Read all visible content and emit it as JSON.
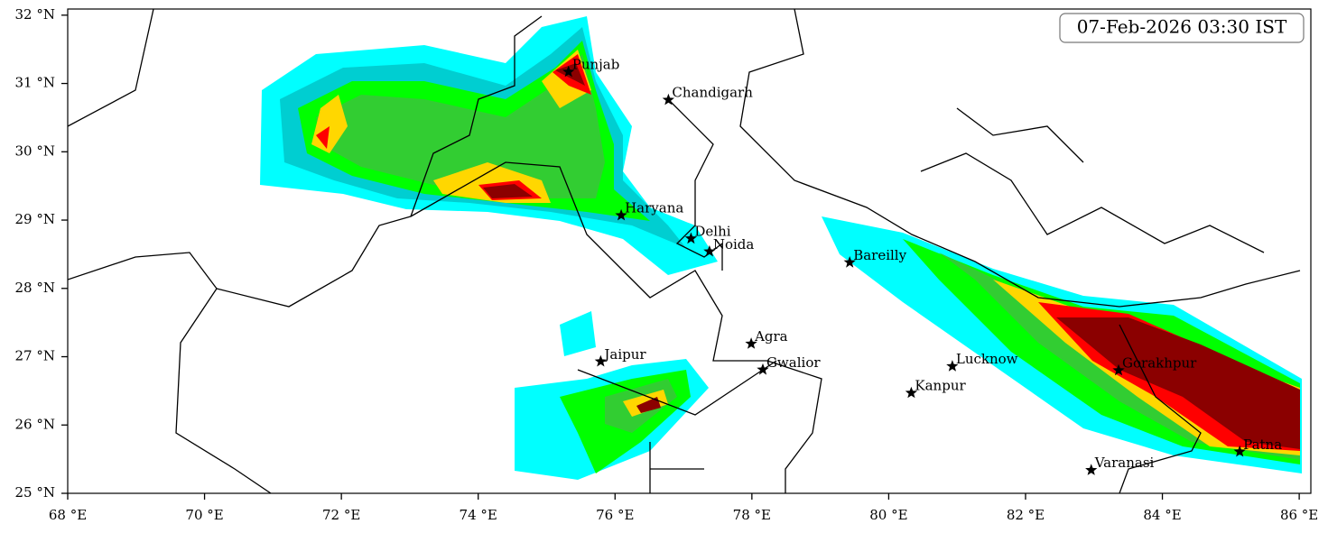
{
  "timestamp": "07-Feb-2026 03:30 IST",
  "map": {
    "xlim": [
      68,
      86.17
    ],
    "ylim": [
      25,
      32.09
    ],
    "xticks": [
      {
        "value": 68,
        "label": "68 °E"
      },
      {
        "value": 70,
        "label": "70 °E"
      },
      {
        "value": 72,
        "label": "72 °E"
      },
      {
        "value": 74,
        "label": "74 °E"
      },
      {
        "value": 76,
        "label": "76 °E"
      },
      {
        "value": 78,
        "label": "78 °E"
      },
      {
        "value": 80,
        "label": "80 °E"
      },
      {
        "value": 82,
        "label": "82 °E"
      },
      {
        "value": 84,
        "label": "84 °E"
      },
      {
        "value": 86,
        "label": "86 °E"
      }
    ],
    "yticks": [
      {
        "value": 25,
        "label": "25 °N"
      },
      {
        "value": 26,
        "label": "26 °N"
      },
      {
        "value": 27,
        "label": "27 °N"
      },
      {
        "value": 28,
        "label": "28 °N"
      },
      {
        "value": 29,
        "label": "29 °N"
      },
      {
        "value": 30,
        "label": "30 °N"
      },
      {
        "value": 31,
        "label": "31 °N"
      },
      {
        "value": 32,
        "label": "32 °N"
      }
    ],
    "cities": [
      {
        "name": "Punjab",
        "lon": 75.32,
        "lat": 31.17
      },
      {
        "name": "Chandigarh",
        "lon": 76.78,
        "lat": 30.76
      },
      {
        "name": "Haryana",
        "lon": 76.09,
        "lat": 29.07
      },
      {
        "name": "Delhi",
        "lon": 77.11,
        "lat": 28.73
      },
      {
        "name": "Noida",
        "lon": 77.38,
        "lat": 28.54
      },
      {
        "name": "Bareilly",
        "lon": 79.43,
        "lat": 28.38
      },
      {
        "name": "Agra",
        "lon": 77.99,
        "lat": 27.19
      },
      {
        "name": "Jaipur",
        "lon": 75.79,
        "lat": 26.93
      },
      {
        "name": "Gwalior",
        "lon": 78.16,
        "lat": 26.81
      },
      {
        "name": "Lucknow",
        "lon": 80.93,
        "lat": 26.86
      },
      {
        "name": "Kanpur",
        "lon": 80.33,
        "lat": 26.47
      },
      {
        "name": "Gorakhpur",
        "lon": 83.36,
        "lat": 26.8
      },
      {
        "name": "Varanasi",
        "lon": 82.96,
        "lat": 25.34
      },
      {
        "name": "Patna",
        "lon": 85.13,
        "lat": 25.61
      }
    ]
  }
}
